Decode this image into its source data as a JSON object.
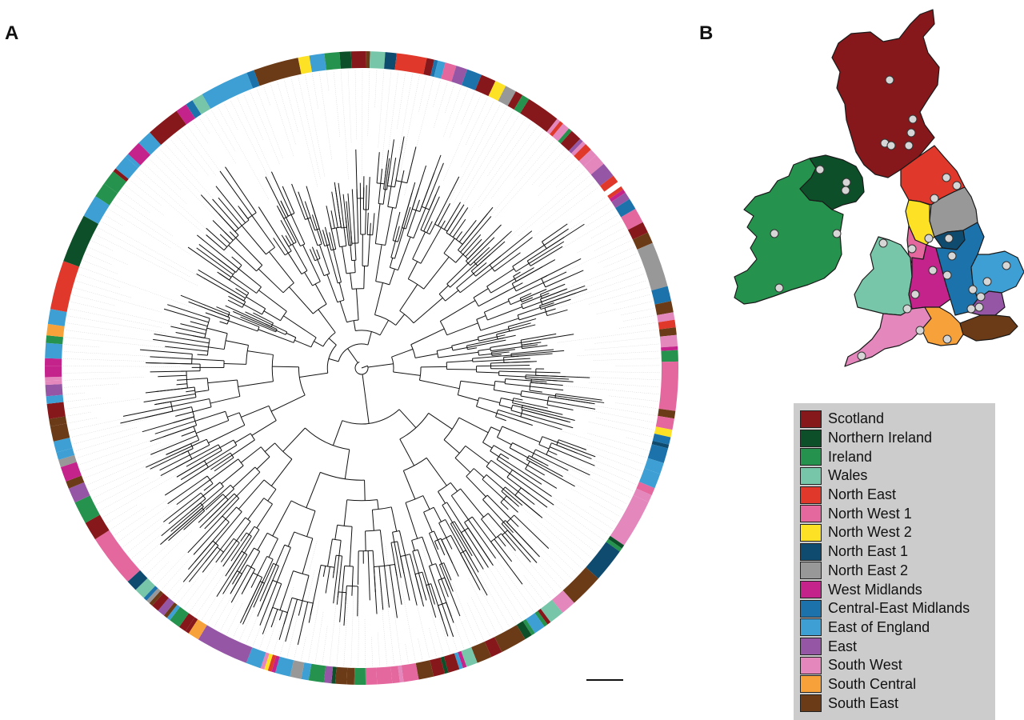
{
  "panels": {
    "a_label": "A",
    "b_label": "B"
  },
  "regions": [
    {
      "name": "Scotland",
      "color": "#86181b"
    },
    {
      "name": "Northern Ireland",
      "color": "#0d4f29"
    },
    {
      "name": "Ireland",
      "color": "#25924d"
    },
    {
      "name": "Wales",
      "color": "#77c6a9"
    },
    {
      "name": "North East",
      "color": "#e0382a"
    },
    {
      "name": "North West 1",
      "color": "#e4679e"
    },
    {
      "name": "North West 2",
      "color": "#fde124"
    },
    {
      "name": "North East 1",
      "color": "#0f4b6f"
    },
    {
      "name": "North East 2",
      "color": "#989898"
    },
    {
      "name": "West Midlands",
      "color": "#c3238b"
    },
    {
      "name": "Central-East Midlands",
      "color": "#1c73ac"
    },
    {
      "name": "East of England",
      "color": "#3d9fd4"
    },
    {
      "name": "East",
      "color": "#9556a6"
    },
    {
      "name": "South West",
      "color": "#e487bd"
    },
    {
      "name": "South Central",
      "color": "#f7a13a"
    },
    {
      "name": "South East",
      "color": "#6b3a16"
    }
  ]
}
